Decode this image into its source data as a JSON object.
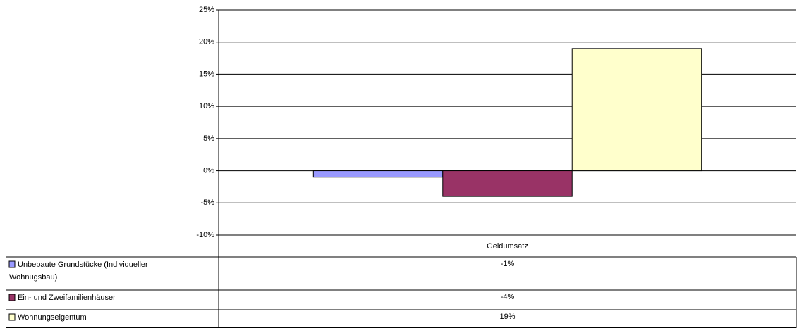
{
  "chart_data": {
    "type": "bar",
    "categories": [
      "Geldumsatz"
    ],
    "series": [
      {
        "name": "Unbebaute Grundstücke (Individueller Wohnugsbau)",
        "color": "#9999ff",
        "values": [
          -1
        ],
        "value_labels": [
          "-1%"
        ]
      },
      {
        "name": "Ein- und Zweifamilienhäuser",
        "color": "#993366",
        "values": [
          -4
        ],
        "value_labels": [
          "-4%"
        ]
      },
      {
        "name": "Wohnungseigentum",
        "color": "#ffffcc",
        "values": [
          19
        ],
        "value_labels": [
          "19%"
        ]
      }
    ],
    "ylim": [
      -10,
      25
    ],
    "yticks": [
      {
        "value": -10,
        "label": "-10%"
      },
      {
        "value": -5,
        "label": "-5%"
      },
      {
        "value": 0,
        "label": "0%"
      },
      {
        "value": 5,
        "label": "5%"
      },
      {
        "value": 10,
        "label": "10%"
      },
      {
        "value": 15,
        "label": "15%"
      },
      {
        "value": 20,
        "label": "20%"
      },
      {
        "value": 25,
        "label": "25%"
      }
    ],
    "grid": true,
    "data_table": true
  }
}
